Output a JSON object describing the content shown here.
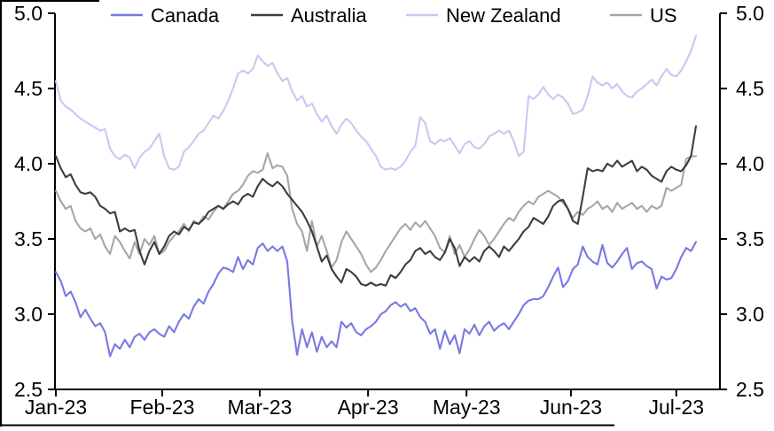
{
  "chart_data": {
    "type": "line",
    "title": "",
    "legend_position": "top",
    "grid": false,
    "x_axis": {
      "tick_labels": [
        "Jan-23",
        "Feb-23",
        "Mar-23",
        "Apr-23",
        "May-23",
        "Jun-23",
        "Jul-23"
      ],
      "tick_idx": [
        0,
        21.6,
        41.4,
        63.4,
        83.4,
        104.6,
        126
      ]
    },
    "y_axis": {
      "min": 2.5,
      "max": 5.0,
      "step": 0.5,
      "tick_values": [
        5.0,
        4.5,
        4.0,
        3.5,
        3.0,
        2.5
      ],
      "tick_labels": [
        "5.0",
        "4.5",
        "4.0",
        "3.5",
        "3.0",
        "2.5"
      ],
      "sides": "both"
    },
    "series": [
      {
        "name": "Canada",
        "color": "#7779e4",
        "values": [
          3.28,
          3.22,
          3.12,
          3.15,
          3.08,
          2.98,
          3.03,
          2.97,
          2.92,
          2.94,
          2.88,
          2.72,
          2.8,
          2.77,
          2.83,
          2.78,
          2.85,
          2.87,
          2.83,
          2.88,
          2.9,
          2.87,
          2.85,
          2.92,
          2.88,
          2.95,
          3.0,
          2.97,
          3.05,
          3.1,
          3.07,
          3.15,
          3.2,
          3.27,
          3.31,
          3.3,
          3.28,
          3.38,
          3.3,
          3.36,
          3.33,
          3.44,
          3.47,
          3.42,
          3.45,
          3.42,
          3.45,
          3.35,
          2.95,
          2.73,
          2.9,
          2.78,
          2.88,
          2.75,
          2.85,
          2.78,
          2.82,
          2.78,
          2.95,
          2.91,
          2.94,
          2.88,
          2.86,
          2.9,
          2.92,
          2.95,
          3.0,
          3.02,
          3.06,
          3.08,
          3.05,
          3.07,
          3.02,
          3.04,
          2.98,
          2.95,
          2.87,
          2.9,
          2.77,
          2.89,
          2.8,
          2.86,
          2.74,
          2.9,
          2.87,
          2.93,
          2.86,
          2.92,
          2.95,
          2.89,
          2.92,
          2.94,
          2.9,
          2.95,
          3.0,
          3.06,
          3.09,
          3.1,
          3.1,
          3.12,
          3.18,
          3.25,
          3.31,
          3.18,
          3.22,
          3.3,
          3.33,
          3.45,
          3.38,
          3.35,
          3.33,
          3.46,
          3.34,
          3.31,
          3.35,
          3.4,
          3.44,
          3.3,
          3.34,
          3.35,
          3.32,
          3.3,
          3.17,
          3.25,
          3.23,
          3.24,
          3.3,
          3.38,
          3.44,
          3.42,
          3.48
        ]
      },
      {
        "name": "Australia",
        "color": "#3d3d3d",
        "values": [
          4.05,
          3.97,
          3.91,
          3.93,
          3.86,
          3.81,
          3.8,
          3.81,
          3.78,
          3.72,
          3.7,
          3.67,
          3.68,
          3.55,
          3.57,
          3.55,
          3.56,
          3.42,
          3.33,
          3.42,
          3.48,
          3.4,
          3.45,
          3.52,
          3.55,
          3.53,
          3.58,
          3.56,
          3.61,
          3.6,
          3.63,
          3.68,
          3.7,
          3.72,
          3.7,
          3.73,
          3.75,
          3.73,
          3.78,
          3.8,
          3.78,
          3.85,
          3.9,
          3.87,
          3.85,
          3.88,
          3.85,
          3.8,
          3.76,
          3.72,
          3.68,
          3.62,
          3.55,
          3.45,
          3.35,
          3.39,
          3.3,
          3.25,
          3.21,
          3.3,
          3.28,
          3.25,
          3.2,
          3.19,
          3.21,
          3.19,
          3.2,
          3.19,
          3.26,
          3.24,
          3.28,
          3.33,
          3.36,
          3.42,
          3.44,
          3.4,
          3.42,
          3.38,
          3.36,
          3.41,
          3.5,
          3.44,
          3.32,
          3.38,
          3.35,
          3.38,
          3.35,
          3.42,
          3.45,
          3.42,
          3.38,
          3.45,
          3.42,
          3.46,
          3.5,
          3.55,
          3.58,
          3.64,
          3.62,
          3.6,
          3.65,
          3.72,
          3.75,
          3.76,
          3.7,
          3.62,
          3.6,
          3.78,
          3.97,
          3.95,
          3.96,
          3.95,
          4.0,
          3.98,
          4.02,
          3.98,
          4.0,
          4.02,
          3.95,
          3.98,
          3.96,
          3.92,
          3.9,
          3.88,
          3.95,
          3.98,
          3.96,
          3.95,
          3.99,
          4.05,
          4.25
        ]
      },
      {
        "name": "New Zealand",
        "color": "#c7c9f2",
        "values": [
          4.55,
          4.42,
          4.38,
          4.36,
          4.33,
          4.3,
          4.28,
          4.26,
          4.24,
          4.22,
          4.23,
          4.1,
          4.05,
          4.03,
          4.06,
          4.04,
          3.97,
          4.04,
          4.08,
          4.1,
          4.15,
          4.2,
          4.05,
          3.97,
          3.96,
          3.98,
          4.08,
          4.11,
          4.15,
          4.2,
          4.22,
          4.27,
          4.32,
          4.3,
          4.35,
          4.42,
          4.5,
          4.6,
          4.62,
          4.6,
          4.63,
          4.72,
          4.68,
          4.65,
          4.67,
          4.6,
          4.55,
          4.57,
          4.48,
          4.42,
          4.45,
          4.38,
          4.4,
          4.33,
          4.28,
          4.32,
          4.25,
          4.2,
          4.26,
          4.3,
          4.27,
          4.22,
          4.18,
          4.15,
          4.1,
          4.05,
          3.98,
          3.96,
          3.97,
          3.96,
          3.98,
          4.02,
          4.08,
          4.12,
          4.31,
          4.27,
          4.15,
          4.13,
          4.16,
          4.15,
          4.17,
          4.12,
          4.07,
          4.13,
          4.15,
          4.11,
          4.1,
          4.13,
          4.18,
          4.2,
          4.22,
          4.2,
          4.22,
          4.15,
          4.05,
          4.08,
          4.45,
          4.43,
          4.46,
          4.51,
          4.46,
          4.43,
          4.46,
          4.44,
          4.4,
          4.33,
          4.34,
          4.36,
          4.45,
          4.58,
          4.54,
          4.52,
          4.54,
          4.5,
          4.53,
          4.48,
          4.45,
          4.44,
          4.48,
          4.5,
          4.53,
          4.56,
          4.52,
          4.58,
          4.63,
          4.59,
          4.58,
          4.62,
          4.68,
          4.75,
          4.85
        ]
      },
      {
        "name": "US",
        "color": "#a6a6a6",
        "values": [
          3.82,
          3.75,
          3.7,
          3.72,
          3.62,
          3.57,
          3.55,
          3.57,
          3.5,
          3.53,
          3.45,
          3.4,
          3.52,
          3.48,
          3.42,
          3.37,
          3.48,
          3.4,
          3.5,
          3.46,
          3.52,
          3.4,
          3.42,
          3.48,
          3.52,
          3.55,
          3.6,
          3.55,
          3.62,
          3.6,
          3.65,
          3.63,
          3.68,
          3.72,
          3.7,
          3.75,
          3.8,
          3.82,
          3.86,
          3.92,
          3.95,
          3.94,
          3.96,
          4.07,
          3.97,
          3.99,
          3.98,
          3.92,
          3.7,
          3.6,
          3.55,
          3.42,
          3.62,
          3.45,
          3.52,
          3.42,
          3.31,
          3.36,
          3.48,
          3.55,
          3.5,
          3.45,
          3.4,
          3.33,
          3.28,
          3.31,
          3.36,
          3.42,
          3.47,
          3.52,
          3.57,
          3.6,
          3.56,
          3.61,
          3.58,
          3.62,
          3.57,
          3.52,
          3.44,
          3.41,
          3.52,
          3.4,
          3.46,
          3.38,
          3.43,
          3.5,
          3.56,
          3.52,
          3.46,
          3.5,
          3.55,
          3.6,
          3.64,
          3.62,
          3.68,
          3.72,
          3.75,
          3.73,
          3.78,
          3.8,
          3.82,
          3.8,
          3.78,
          3.74,
          3.7,
          3.64,
          3.68,
          3.66,
          3.7,
          3.72,
          3.75,
          3.7,
          3.72,
          3.68,
          3.74,
          3.7,
          3.72,
          3.74,
          3.7,
          3.72,
          3.68,
          3.72,
          3.7,
          3.72,
          3.84,
          3.82,
          3.84,
          3.86,
          4.03,
          4.05,
          4.05
        ]
      }
    ]
  }
}
